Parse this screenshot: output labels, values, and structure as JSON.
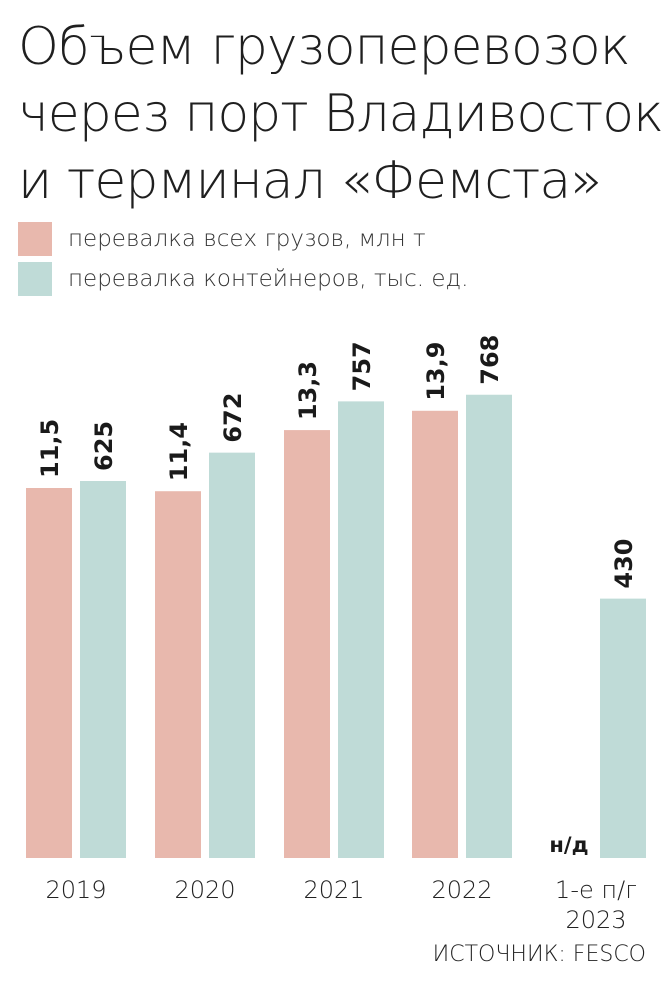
{
  "title_lines": [
    "Объем грузоперевозок",
    "через порт Владивосток",
    "и терминал «Фемста»"
  ],
  "legend": [
    {
      "label": "перевалка всех грузов, млн т",
      "color": "#e8b8ad"
    },
    {
      "label": "перевалка контейнеров, тыс. ед.",
      "color": "#bfdbd7"
    }
  ],
  "source": "ИСТОЧНИК: FESCO",
  "chart_data": {
    "type": "bar",
    "categories": [
      "2019",
      "2020",
      "2021",
      "2022",
      "1-е п/г\n2023"
    ],
    "series": [
      {
        "name": "перевалка всех грузов, млн т",
        "color": "#e8b8ad",
        "values": [
          11.5,
          11.4,
          13.3,
          13.9,
          null
        ],
        "labels": [
          "11,5",
          "11,4",
          "13,3",
          "13,9",
          "н/д"
        ]
      },
      {
        "name": "перевалка контейнеров, тыс. ед.",
        "color": "#bfdbd7",
        "values": [
          625,
          672,
          757,
          768,
          430
        ],
        "labels": [
          "625",
          "672",
          "757",
          "768",
          "430"
        ]
      }
    ]
  }
}
